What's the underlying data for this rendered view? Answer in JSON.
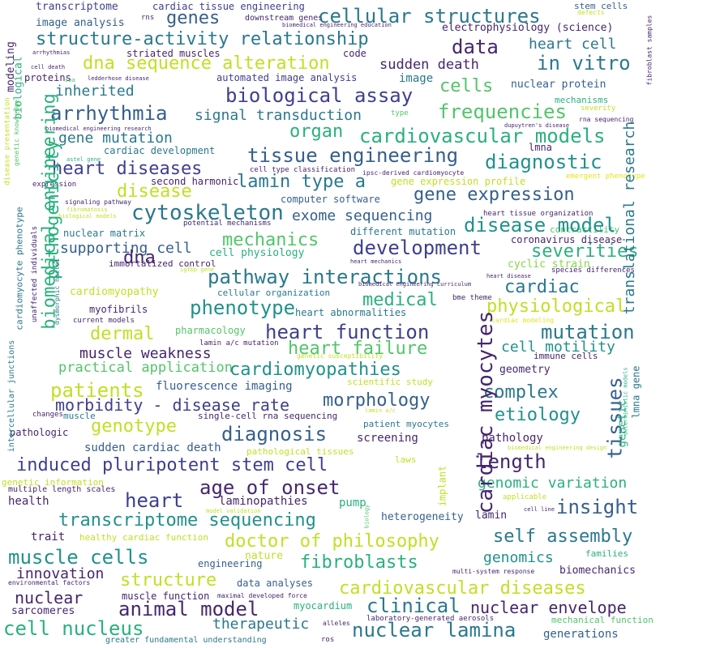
{
  "palette": {
    "dark_purple": "#46266e",
    "indigo": "#3f3f8f",
    "blue": "#355f8d",
    "teal": "#2a788e",
    "green_teal": "#21918c",
    "green": "#2ab07f",
    "light_green": "#52c569",
    "lime": "#86d549",
    "yellow_green": "#c2df23",
    "yellow": "#e2e418"
  },
  "words": [
    "transcriptome",
    "cardiac tissue engineering",
    "genes",
    "downstream genes",
    "cellular structures",
    "stem cells",
    "defects",
    "image analysis",
    "rns",
    "biomedical engineering education",
    "electrophysiology (science)",
    "modeling",
    "structure-activity relationship",
    "data",
    "heart cell",
    "arrhythmias",
    "striated muscles",
    "code",
    "dna sequence alteration",
    "in vitro",
    "cell death",
    "sudden death",
    "biological",
    "proteins",
    "soa",
    "ledderhose disease",
    "automated image analysis",
    "image",
    "nuclear protein",
    "fibroblast samples",
    "inherited",
    "cells",
    "biological assay",
    "mechanisms",
    "severity",
    "arrhythmia",
    "frequencies",
    "signal transduction",
    "type",
    "rna sequencing",
    "biomedical engineering research",
    "dupuytren's disease",
    "organ",
    "gene mutation",
    "cardiovascular models",
    "lmna",
    "cardiac development",
    "tissue engineering",
    "diagnostic",
    "astel gene",
    "cell type classification",
    "ipsc-derived cardiomyocyte",
    "emergent phenotype",
    "heart diseases",
    "second harmonic",
    "lamin type a",
    "gene expression profile",
    "disease",
    "expression",
    "computer software",
    "gene expression",
    "signaling pathway",
    "fibromatosis",
    "cytoskeleton",
    "exome sequencing",
    "heart tissue organization",
    "contractility",
    "disease model",
    "biological models",
    "potential mechanisms",
    "mechanics",
    "nuclear matrix",
    "different mutation",
    "coronavirus disease",
    "development",
    "supporting cell",
    "cell physiology",
    "severities",
    "dna",
    "immortalized control",
    "cyclic strain",
    "igfbp gene",
    "heart mechanics",
    "species differences",
    "pathway interactions",
    "heart disease",
    "cardiac",
    "cardiomyopathy",
    "cellular organization",
    "biomedical engineering curriculum",
    "medical",
    "phenotype",
    "myofibrils",
    "bme theme",
    "physiological",
    "heart abnormalities",
    "current models",
    "cardiac modeling",
    "pharmacology",
    "dermal",
    "heart function",
    "mutation",
    "muscle weakness",
    "lamin a/c mutation",
    "genetic susceptibility",
    "heart failure",
    "cell motility",
    "immune cells",
    "practical application",
    "cardiomyopathies",
    "geometry",
    "fluorescence imaging",
    "scientific study",
    "patients",
    "complex",
    "morbidity - disease rate",
    "morphology",
    "changes",
    "muscle",
    "single-cell rna sequencing",
    "lamin a/c",
    "etiology",
    "pathologic",
    "genotype",
    "patient myocytes",
    "diagnosis",
    "screening",
    "pathology",
    "biomedical engineering design",
    "sudden cardiac death",
    "pathological tissues",
    "induced pluripotent stem cell",
    "laws",
    "length",
    "genetic information",
    "multiple length scales",
    "age of onset",
    "genomic variation",
    "applicable",
    "heart",
    "implant",
    "health",
    "laminopathies",
    "pump",
    "biology",
    "insight",
    "cell line",
    "model validation",
    "transcriptome sequencing",
    "heterogeneity",
    "lamin",
    "trait",
    "healthy cardiac function",
    "doctor of philosophy",
    "self assembly",
    "muscle cells",
    "nature",
    "genomics",
    "families",
    "fibroblasts",
    "engineering",
    "innovation",
    "multi-system response",
    "biomechanics",
    "structure",
    "environmental factors",
    "cardiovascular diseases",
    "nuclear",
    "muscle function",
    "maximal developed force",
    "data analyses",
    "clinical",
    "nuclear envelope",
    "sarcomeres",
    "animal model",
    "myocardium",
    "therapeutic",
    "laboratory-generated aerosols",
    "alleles",
    "mechanical function",
    "cell nucleus",
    "nuclear lamina",
    "generations",
    "greater fundamental understanding",
    "ros",
    "biomedical engineering",
    "pathogenicity",
    "cardiac myocytes",
    "tissues",
    "translational research",
    "genetic",
    "lmna gene",
    "deterministic models",
    "disease presentation",
    "genetic knowledge",
    "cardiomyocyte phenotype",
    "unaffected individuals",
    "dysmorphic nuclei",
    "intercellular junctions"
  ]
}
